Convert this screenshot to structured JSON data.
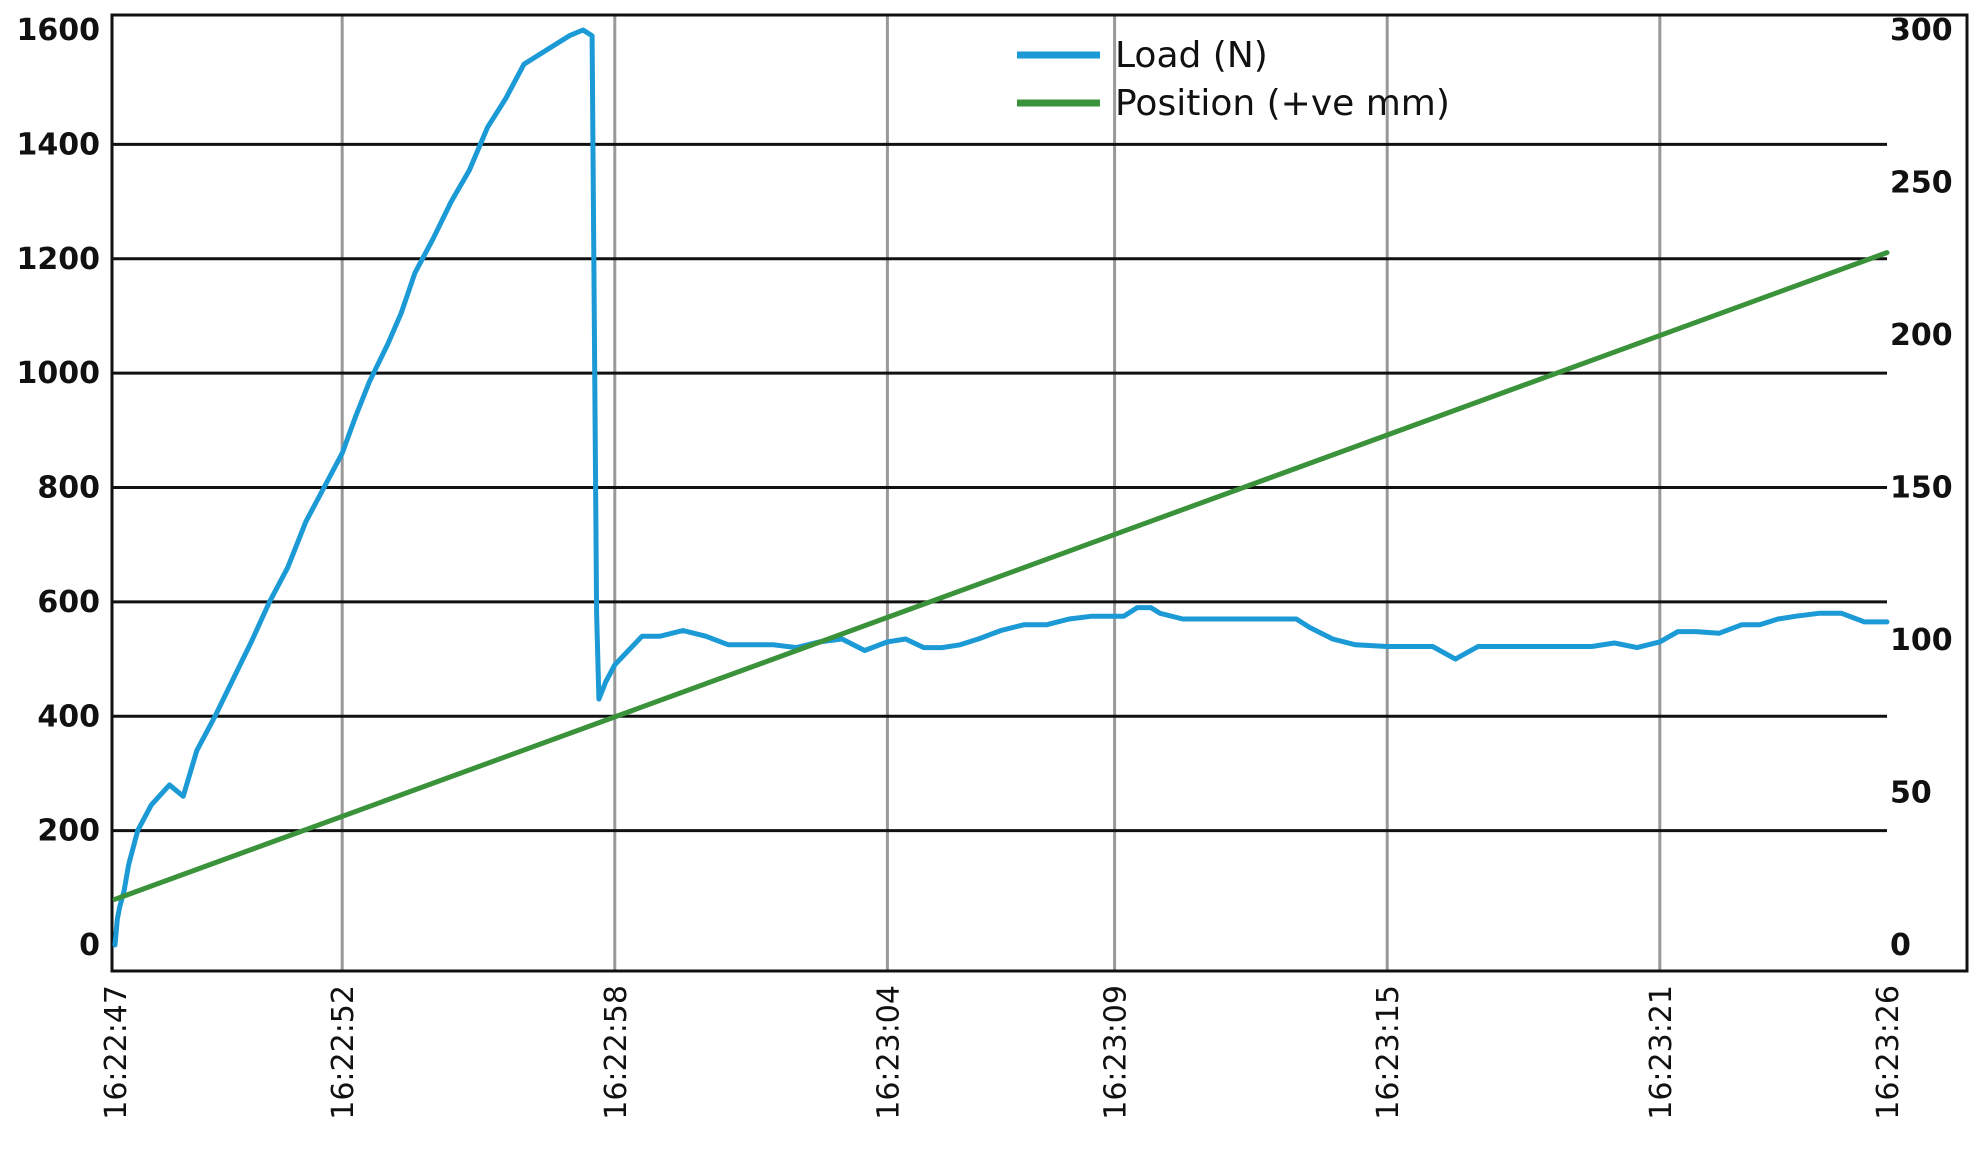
{
  "chart_data": {
    "type": "line",
    "title": "",
    "xlabel": "",
    "ylabel_left": "",
    "ylabel_right": "",
    "x_ticks": [
      "16:22:47",
      "16:22:52",
      "16:22:58",
      "16:23:04",
      "16:23:09",
      "16:23:15",
      "16:23:21",
      "16:23:26"
    ],
    "x_tick_seconds": [
      0,
      5,
      11,
      17,
      22,
      28,
      34,
      39
    ],
    "xlim": [
      0,
      39
    ],
    "y_left_ticks": [
      0,
      200,
      400,
      600,
      800,
      1000,
      1200,
      1400,
      1600
    ],
    "ylim_left": [
      0,
      1600
    ],
    "y_right_ticks": [
      0,
      50,
      100,
      150,
      200,
      250,
      300
    ],
    "ylim_right": [
      0,
      300
    ],
    "grid": {
      "horizontal": true,
      "vertical": true
    },
    "legend_position": "top-center",
    "series": [
      {
        "name": "Load (N)",
        "axis": "left",
        "color": "#1b9ad6",
        "x": [
          0,
          0.05,
          0.1,
          0.2,
          0.3,
          0.5,
          0.8,
          1.2,
          1.5,
          1.8,
          2.2,
          2.6,
          3,
          3.4,
          3.8,
          4.2,
          4.6,
          5,
          5.3,
          5.6,
          6,
          6.3,
          6.6,
          7,
          7.4,
          7.8,
          8.2,
          8.6,
          9,
          9.5,
          10,
          10.3,
          10.5,
          10.6,
          10.65,
          10.7,
          10.8,
          11,
          11.3,
          11.6,
          12,
          12.5,
          13,
          13.5,
          14,
          14.5,
          15,
          15.5,
          16,
          16.5,
          17,
          17.4,
          17.8,
          18.2,
          18.6,
          19,
          19.5,
          20,
          20.5,
          21,
          21.5,
          22,
          22.2,
          22.5,
          22.8,
          23,
          23.5,
          24,
          24.5,
          25,
          25.5,
          26,
          26.3,
          26.8,
          27.3,
          28,
          28.5,
          29,
          29.5,
          30,
          30.5,
          31,
          31.5,
          32,
          32.5,
          33,
          33.5,
          34,
          34.4,
          34.8,
          35.3,
          35.8,
          36.2,
          36.6,
          37,
          37.5,
          38,
          38.5,
          39
        ],
        "values": [
          0,
          45,
          65,
          95,
          140,
          200,
          245,
          280,
          260,
          340,
          400,
          465,
          530,
          600,
          660,
          740,
          800,
          860,
          925,
          985,
          1050,
          1105,
          1175,
          1235,
          1300,
          1355,
          1430,
          1480,
          1540,
          1565,
          1590,
          1600,
          1590,
          580,
          430,
          440,
          460,
          490,
          515,
          540,
          540,
          550,
          540,
          525,
          525,
          525,
          520,
          530,
          535,
          515,
          530,
          535,
          520,
          520,
          525,
          535,
          550,
          560,
          560,
          570,
          575,
          575,
          575,
          590,
          590,
          580,
          570,
          570,
          570,
          570,
          570,
          570,
          555,
          535,
          525,
          522,
          522,
          522,
          500,
          522,
          522,
          522,
          522,
          522,
          522,
          528,
          520,
          530,
          548,
          548,
          545,
          560,
          560,
          570,
          575,
          580,
          580,
          565,
          565
        ]
      },
      {
        "name": "Position (+ve mm)",
        "axis": "right",
        "color": "#3a923a",
        "x": [
          0,
          39
        ],
        "values": [
          15,
          227
        ]
      }
    ]
  }
}
